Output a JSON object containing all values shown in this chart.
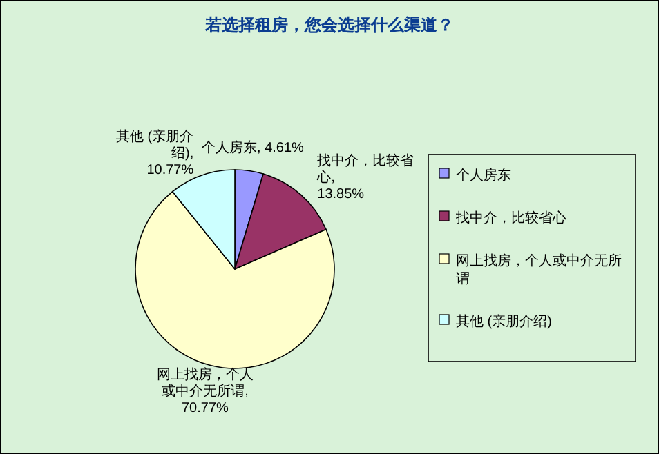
{
  "chart_data": {
    "type": "pie",
    "title": "若选择租房，您会选择什么渠道？",
    "categories": [
      "个人房东",
      "找中介，比较省心",
      "网上找房，个人或中介无所谓",
      "其他 (亲朋介绍)"
    ],
    "values": [
      4.61,
      13.85,
      70.77,
      10.77
    ],
    "colors": [
      "#9999ff",
      "#993366",
      "#ffffcc",
      "#ccffff"
    ],
    "value_labels": [
      "个人房东, 4.61%",
      "找中介，比较省心, 13.85%",
      "网上找房，个人或中介无所谓, 70.77%",
      "其他 (亲朋介绍), 10.77%"
    ],
    "legend": "right"
  }
}
